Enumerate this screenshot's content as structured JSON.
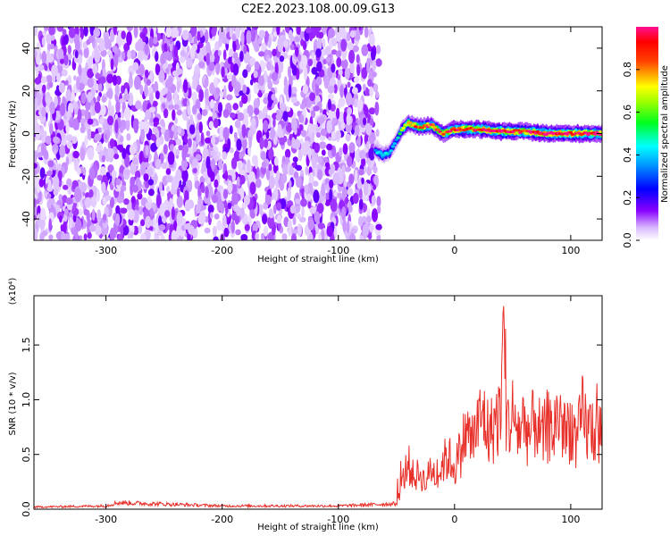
{
  "title": "C2E2.2023.108.00.09.G13",
  "chart_data": [
    {
      "type": "heatmap",
      "title": "C2E2.2023.108.00.09.G13",
      "xlabel": "Height of straight line (km)",
      "ylabel": "Frequency (Hz)",
      "xlim": [
        -362,
        127
      ],
      "ylim": [
        -50,
        50
      ],
      "x_ticks": [
        -300,
        -200,
        -100,
        0,
        100
      ],
      "y_ticks": [
        -40,
        -20,
        0,
        20,
        40
      ],
      "colorbar": {
        "label": "Normalized spectral amplitude",
        "range": [
          0,
          1
        ],
        "ticks": [
          "0.0",
          "0.2",
          "0.4",
          "0.6",
          "0.8"
        ],
        "colormap": "rainbow (white-purple-blue-cyan-green-yellow-red-magenta)"
      },
      "noise_region": {
        "x": [
          -362,
          -65
        ],
        "frequency": [
          -50,
          50
        ],
        "level": "low (0.0-0.2)"
      },
      "tone_trace": [
        {
          "x": -68,
          "frequency": -8,
          "amplitude": 0.35
        },
        {
          "x": -62,
          "frequency": -10,
          "amplitude": 0.45
        },
        {
          "x": -56,
          "frequency": -9,
          "amplitude": 0.4
        },
        {
          "x": -50,
          "frequency": -3,
          "amplitude": 0.35
        },
        {
          "x": -45,
          "frequency": 2,
          "amplitude": 0.6
        },
        {
          "x": -40,
          "frequency": 5,
          "amplitude": 0.75
        },
        {
          "x": -30,
          "frequency": 3,
          "amplitude": 0.85
        },
        {
          "x": -20,
          "frequency": 4,
          "amplitude": 0.9
        },
        {
          "x": -10,
          "frequency": 0,
          "amplitude": 0.85
        },
        {
          "x": 0,
          "frequency": 2,
          "amplitude": 0.95
        },
        {
          "x": 20,
          "frequency": 2,
          "amplitude": 0.95
        },
        {
          "x": 40,
          "frequency": 1,
          "amplitude": 1.0
        },
        {
          "x": 60,
          "frequency": 1,
          "amplitude": 0.95
        },
        {
          "x": 80,
          "frequency": 0,
          "amplitude": 1.0
        },
        {
          "x": 100,
          "frequency": 0,
          "amplitude": 0.95
        },
        {
          "x": 127,
          "frequency": 0,
          "amplitude": 0.95
        }
      ]
    },
    {
      "type": "line",
      "xlabel": "Height of straight line (km)",
      "ylabel": "SNR (10 * v/v)",
      "y_multiplier": "(x10⁴)",
      "xlim": [
        -362,
        127
      ],
      "ylim": [
        0,
        1.95
      ],
      "x_ticks": [
        -300,
        -200,
        -100,
        0,
        100
      ],
      "y_ticks": [
        "0.0",
        "0.5",
        "1.0",
        "1.5"
      ],
      "series": [
        {
          "color": "#e8302a",
          "x": [
            -362,
            -300,
            -290,
            -200,
            -100,
            -50,
            -45,
            -40,
            -35,
            -30,
            -25,
            -20,
            -15,
            -10,
            -5,
            0,
            5,
            10,
            15,
            20,
            25,
            30,
            35,
            40,
            42,
            45,
            50,
            55,
            60,
            65,
            70,
            75,
            80,
            85,
            90,
            95,
            100,
            105,
            110,
            115,
            120,
            127
          ],
          "y": [
            0.02,
            0.03,
            0.06,
            0.03,
            0.03,
            0.05,
            0.25,
            0.45,
            0.3,
            0.35,
            0.25,
            0.4,
            0.3,
            0.45,
            0.5,
            0.4,
            0.55,
            0.75,
            0.65,
            0.8,
            0.9,
            0.7,
            0.85,
            0.9,
            1.95,
            0.8,
            0.9,
            0.75,
            0.85,
            0.7,
            0.9,
            0.65,
            0.8,
            0.75,
            0.95,
            0.7,
            0.85,
            0.6,
            0.9,
            0.75,
            0.8,
            0.7
          ]
        }
      ]
    }
  ]
}
